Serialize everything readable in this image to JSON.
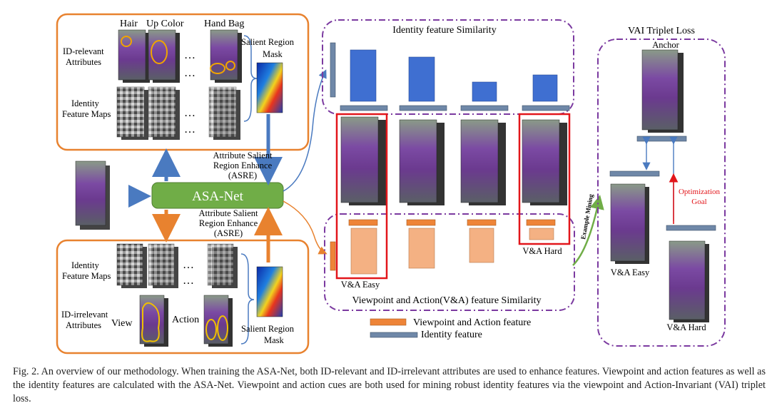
{
  "left_top_panel": {
    "attr_headers": [
      "Hair",
      "Up Color",
      "Hand Bag"
    ],
    "id_relevant_label": [
      "ID-relevant",
      "Attributes"
    ],
    "identity_maps_label": [
      "Identity",
      "Feature Maps"
    ],
    "mask_label": [
      "Salient Region",
      "Mask"
    ],
    "ellipsis": "…"
  },
  "center": {
    "asre_top": [
      "Attribute Salient",
      "Region Enhance",
      "(ASRE)"
    ],
    "asre_bottom": [
      "Attribute Salient",
      "Region Enhance",
      "(ASRE)"
    ],
    "net_label": "ASA-Net"
  },
  "left_bottom_panel": {
    "identity_maps_label": [
      "Identity",
      "Feature Maps"
    ],
    "id_irrelevant_label": [
      "ID-irrelevant",
      "Attributes"
    ],
    "view_label": "View",
    "action_label": "Action",
    "mask_label": [
      "Salient Region",
      "Mask"
    ]
  },
  "middle_panel": {
    "identity_similarity_title": "Identity feature Similarity",
    "va_similarity_title": "Viewpoint and Action(V&A) feature Similarity",
    "va_easy": "V&A Easy",
    "va_hard": "V&A Hard",
    "example_mining": "Example Mining"
  },
  "legend": {
    "orange_label": "Viewpoint and Action feature",
    "blue_label": "Identity feature"
  },
  "right_panel": {
    "title": "VAI Triplet Loss",
    "anchor": "Anchor",
    "optimization_goal": [
      "Optimization",
      "Goal"
    ],
    "va_easy": "V&A Easy",
    "va_hard": "V&A Hard"
  },
  "caption": {
    "text": "Fig. 2.   An overview of our methodology. When training the ASA-Net, both ID-relevant and ID-irrelevant attributes are used to enhance features. Viewpoint and action features as well as the identity features are calculated with the ASA-Net. Viewpoint and action cues are both used for mining robust identity features via the viewpoint and Action-Invariant (VAI) triplet loss."
  },
  "colors": {
    "orange_frame": "#e8822f",
    "purple_dash": "#7b3aa0",
    "blue_bar": "#3f6fd1",
    "steel_bar": "#6f88a8",
    "orange_bar": "#f4b183",
    "orange_feature": "#ee8438",
    "green_net": "#70ad47",
    "red_box": "#e2161b",
    "arrow_blue": "#4a7ac0"
  },
  "icons": [
    "person-photo-icon",
    "feature-map-icon",
    "heatmap-icon",
    "arrow-icon"
  ]
}
